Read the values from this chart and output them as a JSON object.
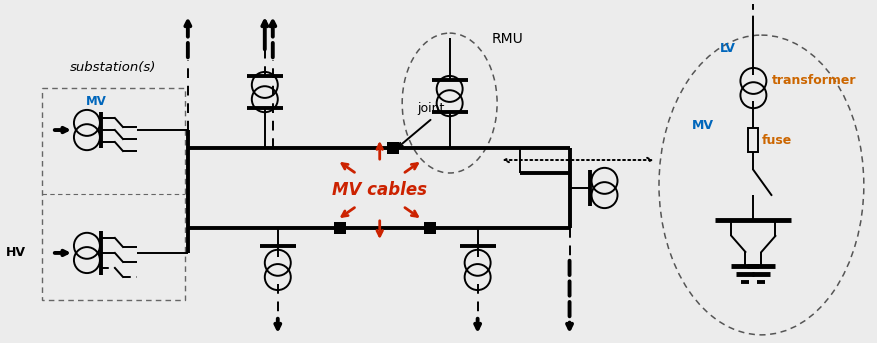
{
  "bg": "#ececec",
  "black": "#000000",
  "red": "#cc2200",
  "blue": "#0066bb",
  "orange": "#cc6600",
  "labels": {
    "substation": "substation(s)",
    "MV_sub": "MV",
    "HV": "HV",
    "joint": "joint",
    "RMU": "RMU",
    "MV_cables": "MV cables",
    "LV": "LV",
    "transformer": "transformer",
    "MV_fuse": "MV",
    "fuse": "fuse"
  },
  "lw": 1.4,
  "lw2": 2.8,
  "lw3": 3.5
}
